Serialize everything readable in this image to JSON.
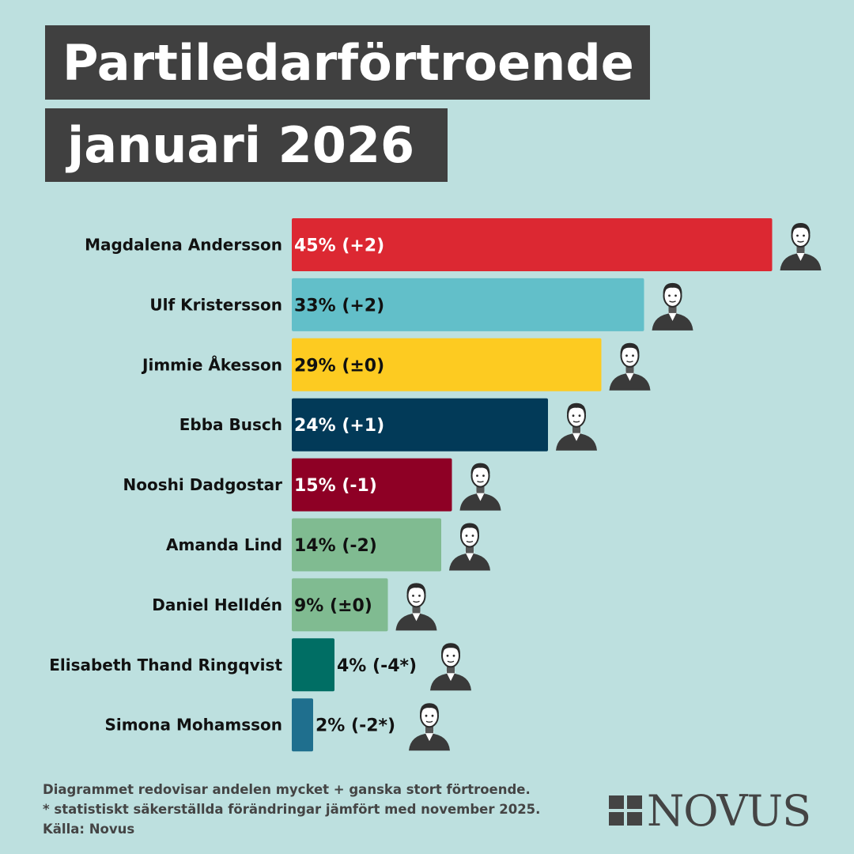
{
  "title": {
    "line1": "Partiledarförtroende",
    "line2": "januari 2026"
  },
  "chart_data": {
    "type": "bar",
    "orientation": "horizontal",
    "categories": [
      "Magdalena Andersson",
      "Ulf Kristersson",
      "Jimmie Åkesson",
      "Ebba Busch",
      "Nooshi Dadgostar",
      "Amanda Lind",
      "Daniel Helldén",
      "Elisabeth Thand Ringqvist",
      "Simona Mohamsson"
    ],
    "values": [
      45,
      33,
      29,
      24,
      15,
      14,
      9,
      4,
      2
    ],
    "labels": [
      "45% (+2)",
      "33% (+2)",
      "29% (±0)",
      "24% (+1)",
      "15% (-1)",
      "14% (-2)",
      "9% (±0)",
      "4% (-4*)",
      "2% (-2*)"
    ],
    "colors": [
      "#dc2832",
      "#62bfc9",
      "#fdcb21",
      "#023a58",
      "#8e0025",
      "#80bb91",
      "#80bb91",
      "#006e64",
      "#1f6f8e"
    ],
    "label_colors": [
      "#ffffff",
      "#111111",
      "#111111",
      "#ffffff",
      "#ffffff",
      "#111111",
      "#111111",
      "#111111",
      "#111111"
    ],
    "unit": "%",
    "xlim": [
      0,
      45
    ],
    "grid": false,
    "legend": "none"
  },
  "footnotes": [
    "Diagrammet redovisar andelen mycket + ganska stort förtroende.",
    "* statistiskt säkerställda förändringar jämfört med november 2025.",
    "Källa: Novus"
  ],
  "logo": {
    "text": "NOVUS",
    "icon": "novus-cross-logo-icon"
  },
  "icons": {
    "portrait": "person-portrait-icon"
  }
}
